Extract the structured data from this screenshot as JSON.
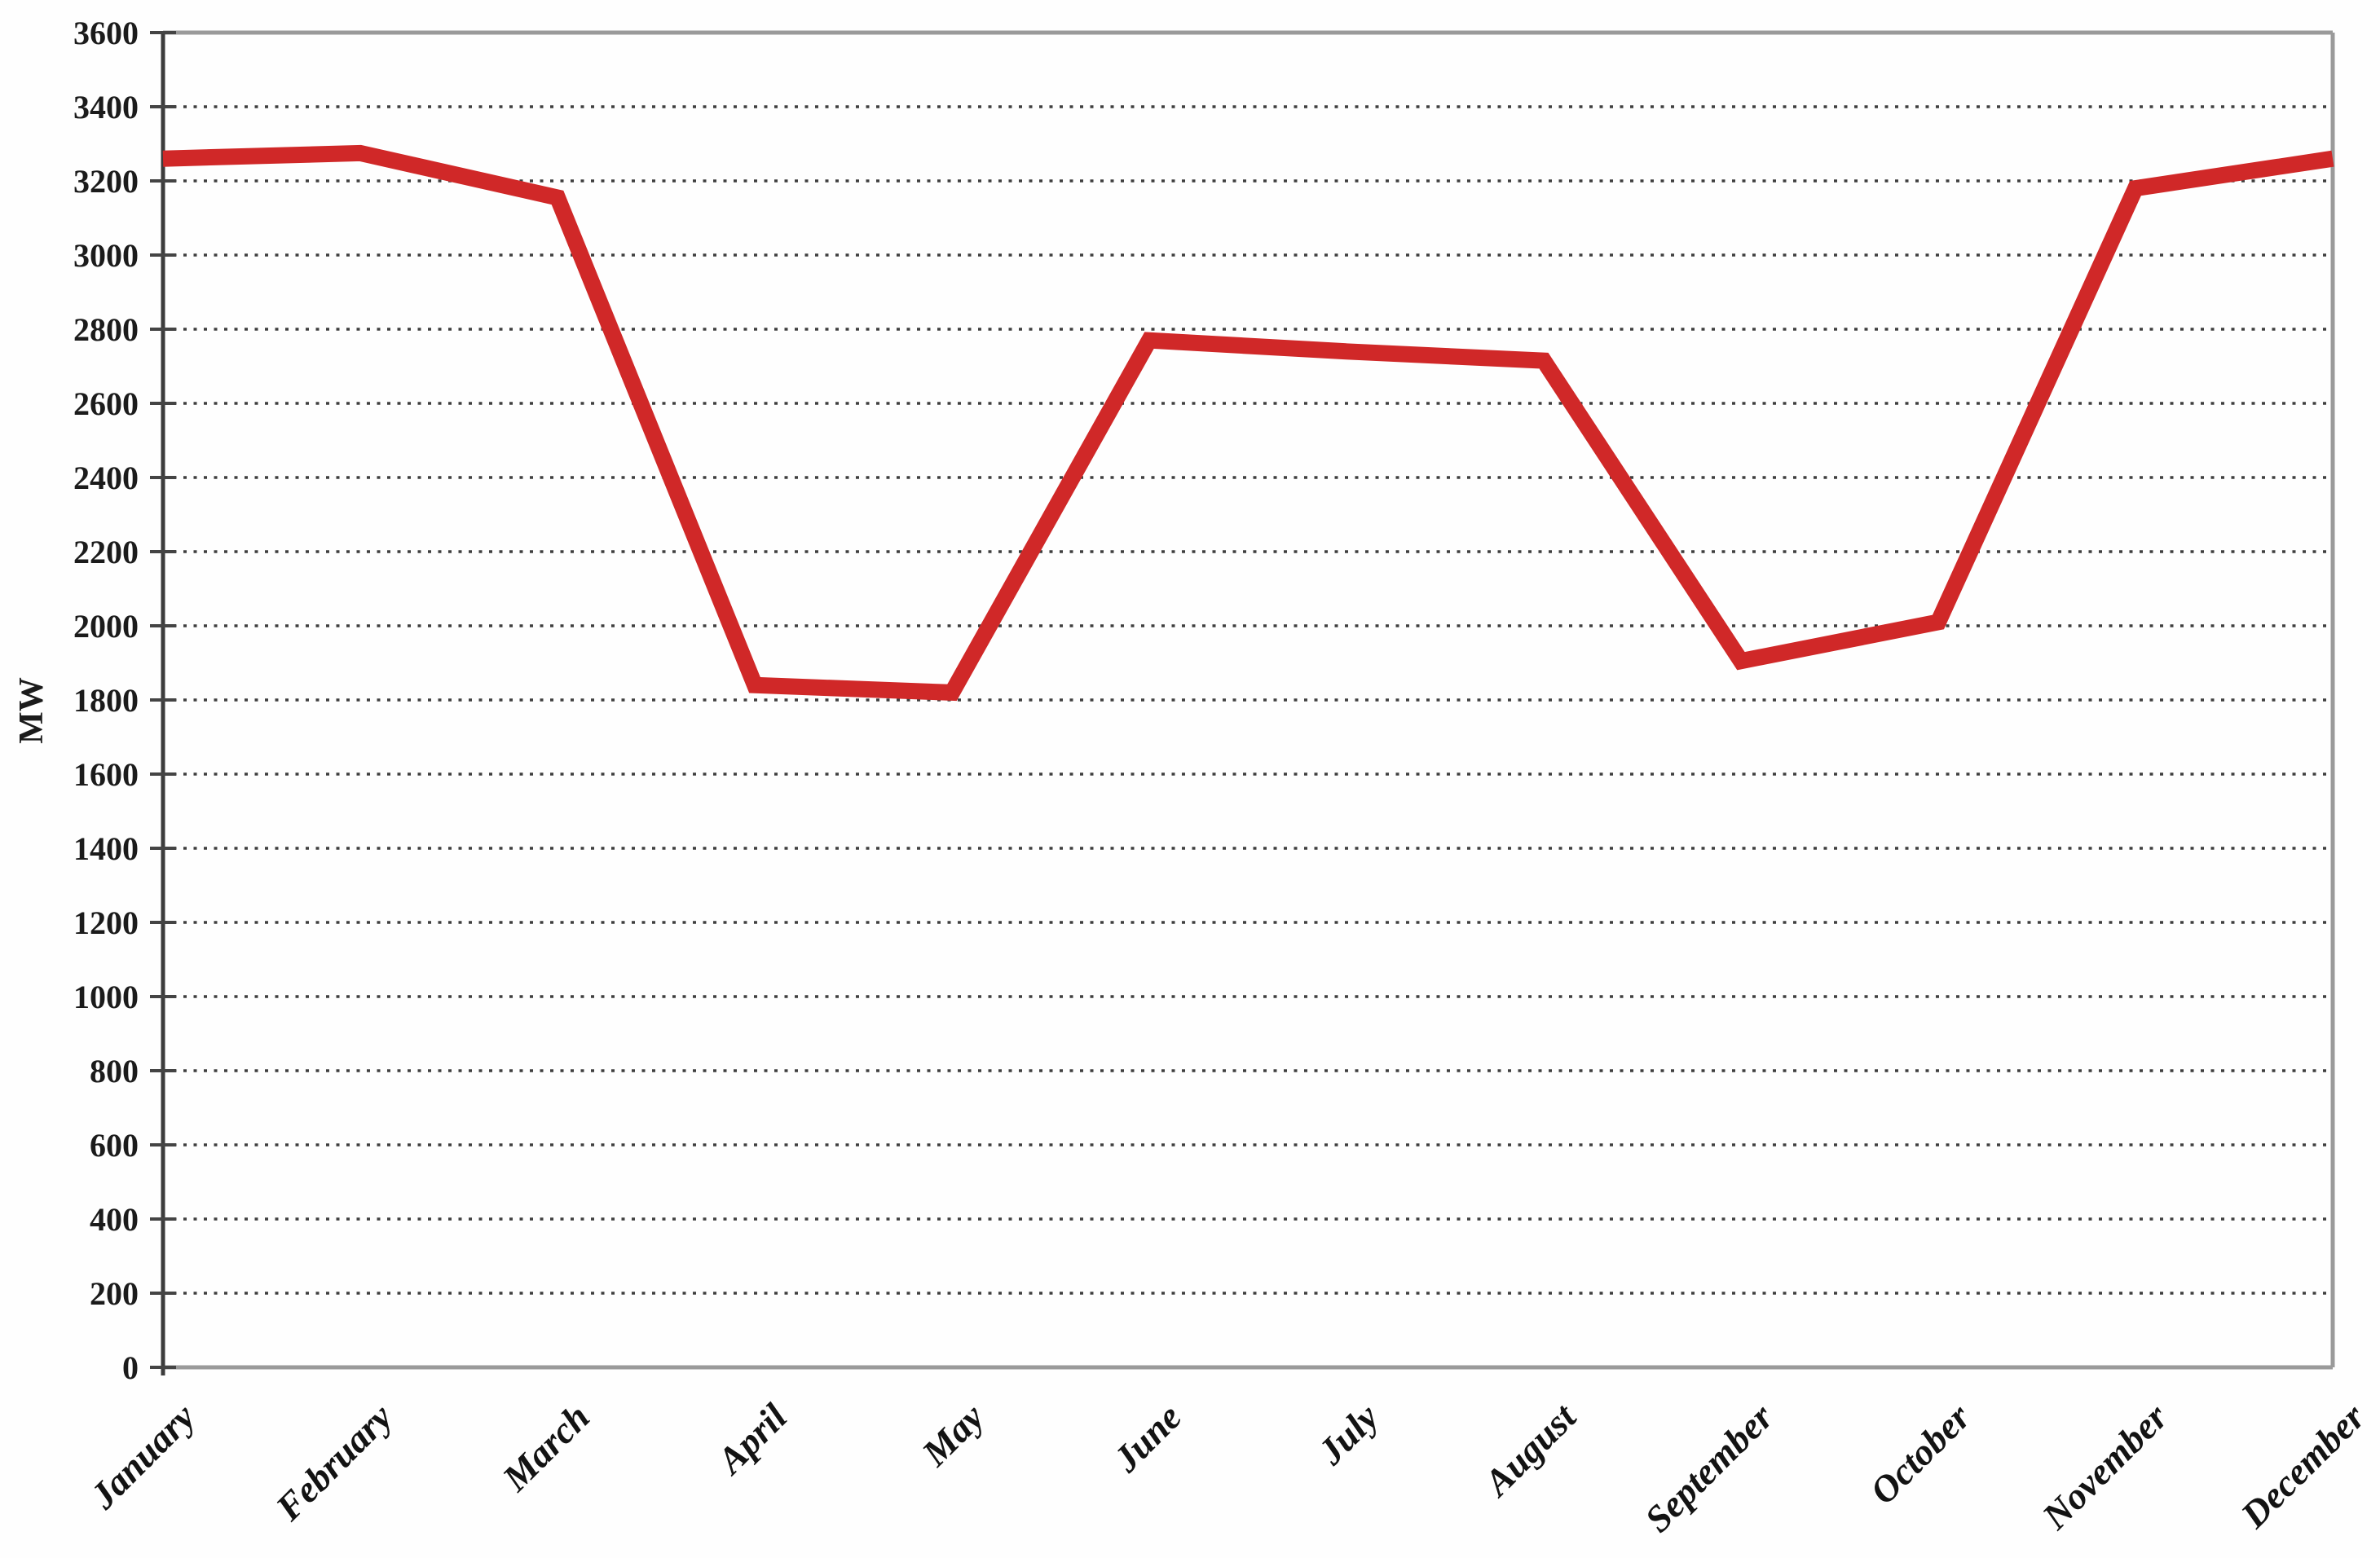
{
  "chart_data": {
    "type": "line",
    "title": "",
    "xlabel": "",
    "ylabel": "MW",
    "categories": [
      "January",
      "February",
      "March",
      "April",
      "May",
      "June",
      "July",
      "August",
      "September",
      "October",
      "November",
      "December"
    ],
    "series": [
      {
        "name": "MW",
        "values": [
          3260,
          3275,
          3155,
          1840,
          1820,
          2770,
          2740,
          2715,
          1905,
          2010,
          3180,
          3260
        ]
      }
    ],
    "ylim": [
      0,
      3600
    ],
    "ytick_step": 200,
    "yticks": [
      0,
      200,
      400,
      600,
      800,
      1000,
      1200,
      1400,
      1600,
      1800,
      2000,
      2200,
      2400,
      2600,
      2800,
      3000,
      3200,
      3400,
      3600
    ],
    "grid": "horizontal-dotted",
    "legend_position": "none",
    "colors": {
      "line": "#d02828",
      "grid_dots": "#3f3f3f",
      "outer_border": "#9a9a9a",
      "y_axis": "#3c3c3c",
      "tick_mark": "#444444",
      "text": "#1b1b1b",
      "background": "#fefefe"
    }
  }
}
